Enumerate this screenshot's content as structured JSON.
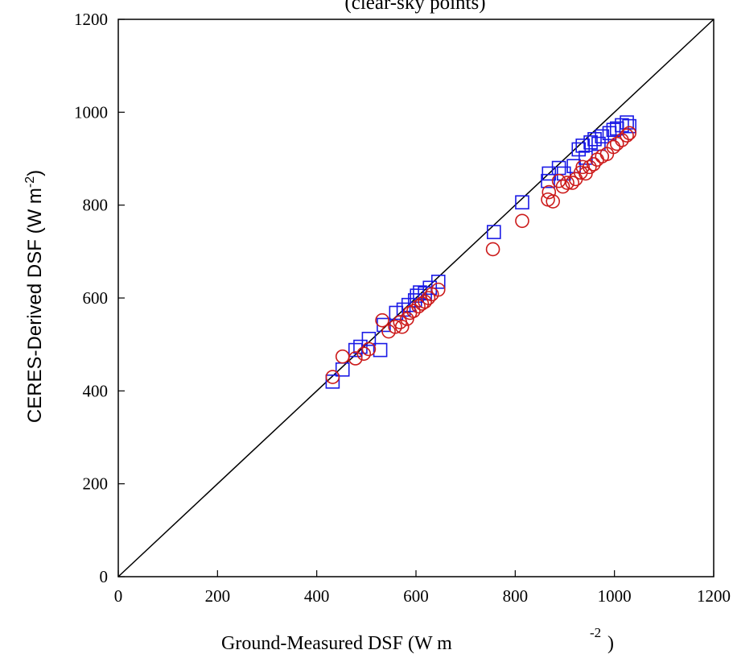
{
  "chart_data": {
    "type": "scatter",
    "title": "(clear-sky points)",
    "xlabel": "Ground-Measured DSF (W m",
    "xlabel_sup": "-2",
    "xlabel_close": ")",
    "ylabel": "CERES-Derived DSF (W m",
    "ylabel_sup": "-2",
    "ylabel_close": ")",
    "xlim": [
      0,
      1200
    ],
    "ylim": [
      0,
      1200
    ],
    "xticks": [
      "0",
      "200",
      "400",
      "600",
      "800",
      "1000",
      "1200"
    ],
    "yticks": [
      "0",
      "200",
      "400",
      "600",
      "800",
      "1000",
      "1200"
    ],
    "grid": false,
    "reference_line": [
      [
        0,
        0
      ],
      [
        1200,
        1200
      ]
    ],
    "series": [
      {
        "marker": "square",
        "color": "#1a1ae6",
        "points": [
          [
            432,
            420
          ],
          [
            452,
            446
          ],
          [
            478,
            488
          ],
          [
            488,
            495
          ],
          [
            505,
            512
          ],
          [
            528,
            488
          ],
          [
            535,
            542
          ],
          [
            560,
            568
          ],
          [
            575,
            575
          ],
          [
            585,
            585
          ],
          [
            598,
            595
          ],
          [
            602,
            605
          ],
          [
            608,
            612
          ],
          [
            618,
            610
          ],
          [
            628,
            622
          ],
          [
            645,
            635
          ],
          [
            757,
            742
          ],
          [
            814,
            806
          ],
          [
            866,
            852
          ],
          [
            868,
            868
          ],
          [
            888,
            880
          ],
          [
            898,
            868
          ],
          [
            918,
            884
          ],
          [
            928,
            920
          ],
          [
            936,
            928
          ],
          [
            942,
            902
          ],
          [
            952,
            935
          ],
          [
            960,
            942
          ],
          [
            968,
            932
          ],
          [
            975,
            948
          ],
          [
            990,
            955
          ],
          [
            998,
            962
          ],
          [
            1005,
            965
          ],
          [
            1015,
            972
          ],
          [
            1025,
            978
          ],
          [
            1030,
            970
          ]
        ]
      },
      {
        "marker": "circle",
        "color": "#cc1a1a",
        "points": [
          [
            432,
            430
          ],
          [
            452,
            474
          ],
          [
            478,
            470
          ],
          [
            495,
            480
          ],
          [
            505,
            490
          ],
          [
            532,
            552
          ],
          [
            545,
            528
          ],
          [
            558,
            538
          ],
          [
            568,
            548
          ],
          [
            572,
            538
          ],
          [
            582,
            555
          ],
          [
            588,
            568
          ],
          [
            595,
            572
          ],
          [
            605,
            582
          ],
          [
            612,
            588
          ],
          [
            618,
            592
          ],
          [
            625,
            600
          ],
          [
            632,
            608
          ],
          [
            645,
            618
          ],
          [
            755,
            705
          ],
          [
            814,
            766
          ],
          [
            866,
            812
          ],
          [
            868,
            828
          ],
          [
            876,
            808
          ],
          [
            888,
            852
          ],
          [
            896,
            840
          ],
          [
            905,
            848
          ],
          [
            915,
            848
          ],
          [
            922,
            856
          ],
          [
            932,
            870
          ],
          [
            936,
            882
          ],
          [
            942,
            868
          ],
          [
            950,
            882
          ],
          [
            958,
            888
          ],
          [
            965,
            898
          ],
          [
            975,
            905
          ],
          [
            985,
            910
          ],
          [
            998,
            925
          ],
          [
            1005,
            932
          ],
          [
            1015,
            940
          ],
          [
            1025,
            950
          ],
          [
            1030,
            955
          ]
        ]
      }
    ]
  }
}
